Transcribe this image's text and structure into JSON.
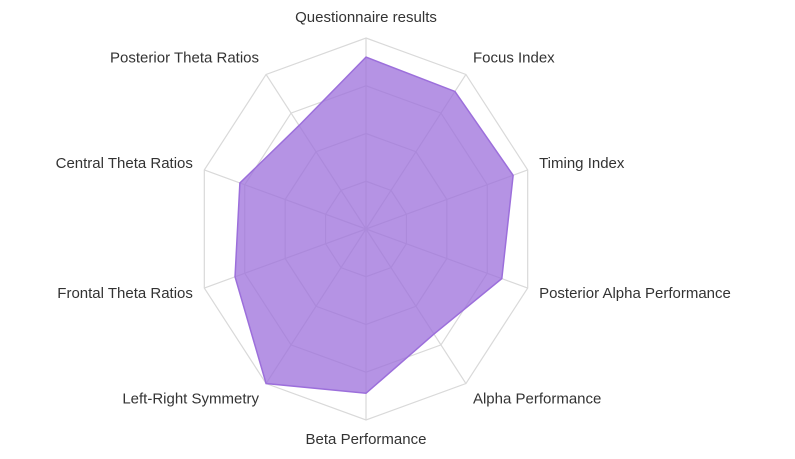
{
  "chart_data": {
    "type": "radar",
    "categories": [
      "Questionnaire results",
      "Focus Index",
      "Timing Index",
      "Posterior Alpha Performance",
      "Alpha Performance",
      "Beta Performance",
      "Left-Right Symmetry",
      "Frontal Theta Ratios",
      "Central Theta Ratios",
      "Posterior Theta Ratios"
    ],
    "values": [
      90,
      89,
      91,
      84,
      68,
      86,
      100,
      81,
      78,
      67
    ],
    "color": "#9c6fdb",
    "ylim": [
      0,
      100
    ],
    "yticks": [
      0,
      25,
      50,
      75,
      100
    ],
    "grid": true
  }
}
